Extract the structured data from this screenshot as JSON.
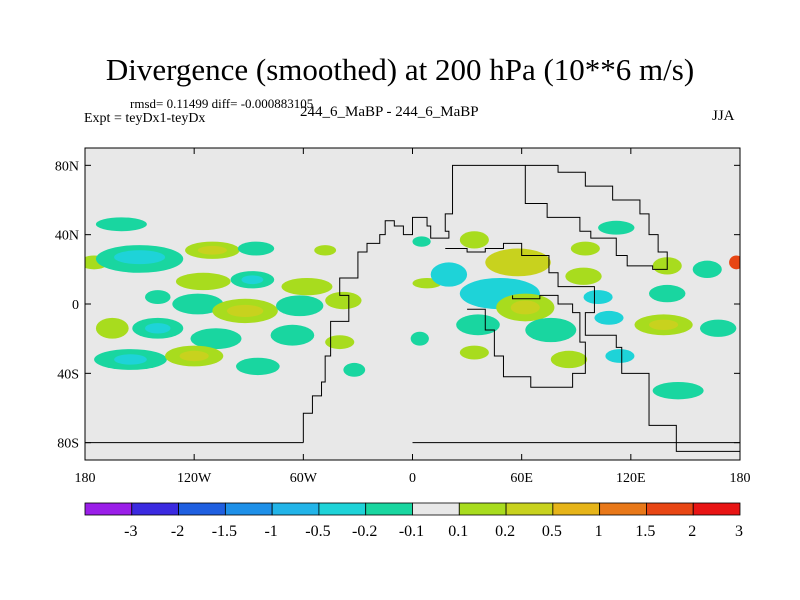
{
  "chart_data": {
    "type": "heatmap",
    "title": "Divergence (smoothed) at 200 hPa (10**6 m/s)",
    "stats_line": "rmsd= 0.11499 diff= -0.000883105",
    "experiment": "Expt = teyDx1-teyDx",
    "runs": "244_6_MaBP - 244_6_MaBP",
    "season": "JJA",
    "x_ticks": [
      {
        "value": -180,
        "label": "180"
      },
      {
        "value": -120,
        "label": "120W"
      },
      {
        "value": -60,
        "label": "60W"
      },
      {
        "value": 0,
        "label": "0"
      },
      {
        "value": 60,
        "label": "60E"
      },
      {
        "value": 120,
        "label": "120E"
      },
      {
        "value": 180,
        "label": "180"
      }
    ],
    "y_ticks": [
      {
        "value": 80,
        "label": "80N"
      },
      {
        "value": 40,
        "label": "40N"
      },
      {
        "value": 0,
        "label": "0"
      },
      {
        "value": -40,
        "label": "40S"
      },
      {
        "value": -80,
        "label": "80S"
      }
    ],
    "xlim": [
      -180,
      180
    ],
    "ylim": [
      -90,
      90
    ],
    "colorbar": {
      "labels": [
        "-3",
        "-2",
        "-1.5",
        "-1",
        "-0.5",
        "-0.2",
        "-0.1",
        "0.1",
        "0.2",
        "0.5",
        "1",
        "1.5",
        "2",
        "3"
      ],
      "colors": [
        "#9a1ee8",
        "#3b2ae0",
        "#1f5fe0",
        "#1e90e8",
        "#22b4e8",
        "#1ed3d8",
        "#19d6a0",
        "#e8e8e8",
        "#a8dc1e",
        "#c8d21e",
        "#e6b419",
        "#e87819",
        "#e84614",
        "#e81414"
      ]
    },
    "blobs": [
      {
        "lon": -160,
        "lat": 46,
        "rx": 14,
        "ry": 4,
        "color": "#19d6a0"
      },
      {
        "lon": -175,
        "lat": 24,
        "rx": 8,
        "ry": 4,
        "color": "#a8dc1e"
      },
      {
        "lon": -150,
        "lat": 26,
        "rx": 24,
        "ry": 8,
        "color": "#19d6a0"
      },
      {
        "lon": -150,
        "lat": 27,
        "rx": 14,
        "ry": 4,
        "color": "#1ed3d8"
      },
      {
        "lon": -110,
        "lat": 31,
        "rx": 15,
        "ry": 5,
        "color": "#a8dc1e"
      },
      {
        "lon": -110,
        "lat": 31,
        "rx": 8,
        "ry": 2.5,
        "color": "#c8d21e"
      },
      {
        "lon": -86,
        "lat": 32,
        "rx": 10,
        "ry": 4,
        "color": "#19d6a0"
      },
      {
        "lon": -48,
        "lat": 31,
        "rx": 6,
        "ry": 3,
        "color": "#a8dc1e"
      },
      {
        "lon": -115,
        "lat": 13,
        "rx": 15,
        "ry": 5,
        "color": "#a8dc1e"
      },
      {
        "lon": -88,
        "lat": 14,
        "rx": 12,
        "ry": 5,
        "color": "#19d6a0"
      },
      {
        "lon": -88,
        "lat": 14,
        "rx": 6,
        "ry": 2.5,
        "color": "#1ed3d8"
      },
      {
        "lon": -58,
        "lat": 10,
        "rx": 14,
        "ry": 5,
        "color": "#a8dc1e"
      },
      {
        "lon": -140,
        "lat": 4,
        "rx": 7,
        "ry": 4,
        "color": "#19d6a0"
      },
      {
        "lon": -118,
        "lat": 0,
        "rx": 14,
        "ry": 6,
        "color": "#19d6a0"
      },
      {
        "lon": -92,
        "lat": -4,
        "rx": 18,
        "ry": 7,
        "color": "#a8dc1e"
      },
      {
        "lon": -92,
        "lat": -4,
        "rx": 10,
        "ry": 3.5,
        "color": "#c8d21e"
      },
      {
        "lon": -62,
        "lat": -1,
        "rx": 13,
        "ry": 6,
        "color": "#19d6a0"
      },
      {
        "lon": -38,
        "lat": 2,
        "rx": 10,
        "ry": 5,
        "color": "#a8dc1e"
      },
      {
        "lon": -165,
        "lat": -14,
        "rx": 9,
        "ry": 6,
        "color": "#a8dc1e"
      },
      {
        "lon": -140,
        "lat": -14,
        "rx": 14,
        "ry": 6,
        "color": "#19d6a0"
      },
      {
        "lon": -140,
        "lat": -14,
        "rx": 7,
        "ry": 3,
        "color": "#1ed3d8"
      },
      {
        "lon": -108,
        "lat": -20,
        "rx": 14,
        "ry": 6,
        "color": "#19d6a0"
      },
      {
        "lon": -66,
        "lat": -18,
        "rx": 12,
        "ry": 6,
        "color": "#19d6a0"
      },
      {
        "lon": -40,
        "lat": -22,
        "rx": 8,
        "ry": 4,
        "color": "#a8dc1e"
      },
      {
        "lon": -155,
        "lat": -32,
        "rx": 20,
        "ry": 6,
        "color": "#19d6a0"
      },
      {
        "lon": -155,
        "lat": -32,
        "rx": 9,
        "ry": 3,
        "color": "#1ed3d8"
      },
      {
        "lon": -120,
        "lat": -30,
        "rx": 16,
        "ry": 6,
        "color": "#a8dc1e"
      },
      {
        "lon": -120,
        "lat": -30,
        "rx": 8,
        "ry": 3,
        "color": "#c8d21e"
      },
      {
        "lon": -85,
        "lat": -36,
        "rx": 12,
        "ry": 5,
        "color": "#19d6a0"
      },
      {
        "lon": -32,
        "lat": -38,
        "rx": 6,
        "ry": 4,
        "color": "#19d6a0"
      },
      {
        "lon": 8,
        "lat": 12,
        "rx": 8,
        "ry": 3,
        "color": "#a8dc1e"
      },
      {
        "lon": 5,
        "lat": 36,
        "rx": 5,
        "ry": 3,
        "color": "#19d6a0"
      },
      {
        "lon": 20,
        "lat": 17,
        "rx": 10,
        "ry": 7,
        "color": "#1ed3d8"
      },
      {
        "lon": 34,
        "lat": 37,
        "rx": 8,
        "ry": 5,
        "color": "#a8dc1e"
      },
      {
        "lon": 58,
        "lat": 24,
        "rx": 18,
        "ry": 8,
        "color": "#c8d21e"
      },
      {
        "lon": 48,
        "lat": 6,
        "rx": 22,
        "ry": 9,
        "color": "#1ed3d8"
      },
      {
        "lon": 36,
        "lat": -12,
        "rx": 12,
        "ry": 6,
        "color": "#19d6a0"
      },
      {
        "lon": 62,
        "lat": -2,
        "rx": 16,
        "ry": 8,
        "color": "#a8dc1e"
      },
      {
        "lon": 62,
        "lat": -2,
        "rx": 8,
        "ry": 4,
        "color": "#c8d21e"
      },
      {
        "lon": 76,
        "lat": -15,
        "rx": 14,
        "ry": 7,
        "color": "#19d6a0"
      },
      {
        "lon": 94,
        "lat": 16,
        "rx": 10,
        "ry": 5,
        "color": "#a8dc1e"
      },
      {
        "lon": 102,
        "lat": 4,
        "rx": 8,
        "ry": 4,
        "color": "#1ed3d8"
      },
      {
        "lon": 108,
        "lat": -8,
        "rx": 8,
        "ry": 4,
        "color": "#1ed3d8"
      },
      {
        "lon": 95,
        "lat": 32,
        "rx": 8,
        "ry": 4,
        "color": "#a8dc1e"
      },
      {
        "lon": 112,
        "lat": 44,
        "rx": 10,
        "ry": 4,
        "color": "#19d6a0"
      },
      {
        "lon": 34,
        "lat": -28,
        "rx": 8,
        "ry": 4,
        "color": "#a8dc1e"
      },
      {
        "lon": 4,
        "lat": -20,
        "rx": 5,
        "ry": 4,
        "color": "#19d6a0"
      },
      {
        "lon": 86,
        "lat": -32,
        "rx": 10,
        "ry": 5,
        "color": "#a8dc1e"
      },
      {
        "lon": 114,
        "lat": -30,
        "rx": 8,
        "ry": 4,
        "color": "#1ed3d8"
      },
      {
        "lon": 140,
        "lat": 22,
        "rx": 8,
        "ry": 5,
        "color": "#a8dc1e"
      },
      {
        "lon": 162,
        "lat": 20,
        "rx": 8,
        "ry": 5,
        "color": "#19d6a0"
      },
      {
        "lon": 140,
        "lat": 6,
        "rx": 10,
        "ry": 5,
        "color": "#19d6a0"
      },
      {
        "lon": 138,
        "lat": -12,
        "rx": 16,
        "ry": 6,
        "color": "#a8dc1e"
      },
      {
        "lon": 138,
        "lat": -12,
        "rx": 8,
        "ry": 3,
        "color": "#c8d21e"
      },
      {
        "lon": 168,
        "lat": -14,
        "rx": 10,
        "ry": 5,
        "color": "#19d6a0"
      },
      {
        "lon": 178,
        "lat": 24,
        "rx": 4,
        "ry": 4,
        "color": "#e84614"
      },
      {
        "lon": 146,
        "lat": -50,
        "rx": 14,
        "ry": 5,
        "color": "#19d6a0"
      }
    ],
    "coastlines": [
      [
        [
          -60,
          -80
        ],
        [
          -60,
          -63
        ],
        [
          -55,
          -53
        ],
        [
          -50,
          -45
        ],
        [
          -48,
          -30
        ],
        [
          -45,
          -10
        ],
        [
          -35,
          -5
        ],
        [
          -35,
          5
        ],
        [
          -40,
          15
        ],
        [
          -30,
          30
        ],
        [
          -25,
          35
        ],
        [
          -18,
          40
        ],
        [
          -15,
          48
        ],
        [
          -10,
          45
        ],
        [
          -5,
          40
        ],
        [
          0,
          50
        ],
        [
          8,
          45
        ],
        [
          10,
          38
        ],
        [
          20,
          42
        ],
        [
          18,
          52
        ],
        [
          22,
          63
        ],
        [
          22,
          80
        ],
        [
          62,
          80
        ],
        [
          62,
          58
        ],
        [
          74,
          55
        ],
        [
          74,
          50
        ],
        [
          92,
          42
        ],
        [
          98,
          38
        ],
        [
          112,
          28
        ],
        [
          118,
          22
        ],
        [
          132,
          20
        ],
        [
          140,
          20
        ],
        [
          140,
          30
        ],
        [
          135,
          40
        ],
        [
          130,
          52
        ],
        [
          125,
          60
        ],
        [
          110,
          68
        ],
        [
          95,
          76
        ],
        [
          80,
          80
        ],
        [
          62,
          80
        ]
      ],
      [
        [
          0,
          -80
        ],
        [
          180,
          -80
        ]
      ],
      [
        [
          -180,
          -80
        ],
        [
          -60,
          -80
        ]
      ]
    ],
    "africa_outline": [
      [
        18,
        32
      ],
      [
        30,
        30
      ],
      [
        40,
        32
      ],
      [
        50,
        35
      ],
      [
        60,
        28
      ],
      [
        75,
        18
      ],
      [
        80,
        10
      ],
      [
        90,
        10
      ],
      [
        100,
        -5
      ],
      [
        95,
        -18
      ],
      [
        112,
        -25
      ],
      [
        115,
        -40
      ],
      [
        130,
        -40
      ],
      [
        130,
        -70
      ],
      [
        145,
        -85
      ],
      [
        180,
        -85
      ]
    ],
    "south_africa": [
      [
        30,
        -3
      ],
      [
        40,
        -15
      ],
      [
        45,
        -30
      ],
      [
        50,
        -42
      ],
      [
        65,
        -48
      ],
      [
        80,
        -48
      ],
      [
        88,
        -40
      ],
      [
        95,
        -22
      ],
      [
        92,
        -5
      ],
      [
        88,
        0
      ],
      [
        80,
        5
      ],
      [
        70,
        3
      ],
      [
        55,
        5
      ]
    ]
  }
}
